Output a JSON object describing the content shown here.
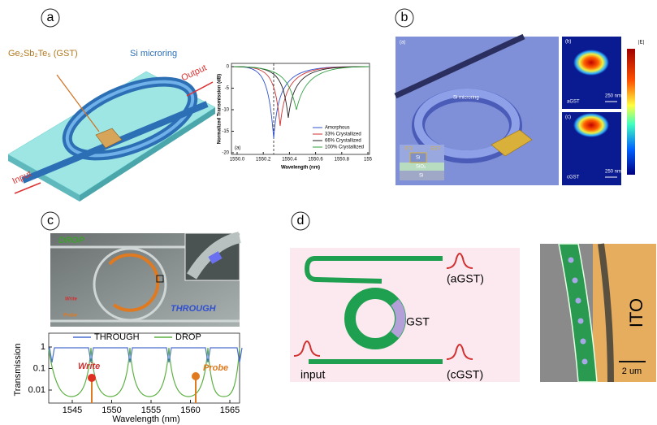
{
  "panels": {
    "a": {
      "label": "a",
      "gst": "Ge₂Sb₂Te₅ (GST)",
      "ring": "Si microring",
      "output": "Output",
      "input": "Input",
      "plot": {
        "tag": "(a)",
        "ylabel": "Normalized Transmission (dB)",
        "xlabel": "Wavelength (nm)",
        "yticks": [
          "0",
          "-5",
          "-10",
          "-15",
          "-20"
        ],
        "xticks": [
          "1550.0",
          "1550.2",
          "1550.4",
          "1550.6",
          "1550.8",
          "155"
        ],
        "legend": [
          "Amorphous",
          "33% Crystallized",
          "66% Crystallized",
          "100% Crystallized"
        ]
      }
    },
    "b": {
      "label": "b",
      "tag1": "(a)",
      "ring": "Si microring",
      "ito": "ITO",
      "gst": "GST",
      "si1": "Si",
      "sio2": "SiO₂",
      "si2": "Si",
      "tag2": "(b)",
      "agst": "aGST",
      "scale1": "250 nm",
      "tag3": "(c)",
      "cgst": "cGST",
      "scale2": "250 nm",
      "cbar": "|E|"
    },
    "c": {
      "label": "c",
      "drop": "DROP",
      "write": "Write",
      "probe": "Probe",
      "through": "THROUGH",
      "plot": {
        "legend": [
          "THROUGH",
          "DROP"
        ],
        "ylabel": "Transmission",
        "xlabel": "Wavelength (nm)",
        "yticks": [
          "1",
          "0.1",
          "0.01"
        ],
        "xticks": [
          "1545",
          "1550",
          "1555",
          "1560",
          "1565"
        ],
        "write": "Write",
        "probe": "Probe"
      }
    },
    "d": {
      "label": "d",
      "agst": "(aGST)",
      "gst": "GST",
      "input": "input",
      "cgst": "(cGST)",
      "ito": "ITO",
      "scale": "2 um"
    }
  }
}
